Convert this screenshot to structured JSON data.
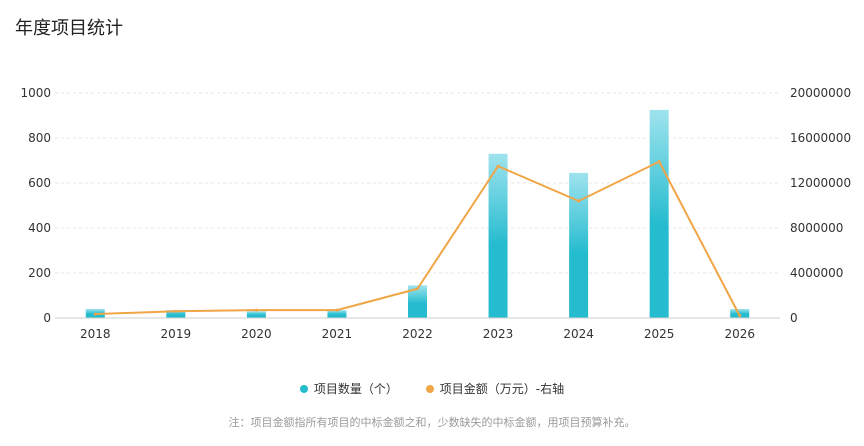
{
  "colors": {
    "bar_top": "#9fe3ee",
    "bar_bottom": "#26bccf",
    "line": "#f0a546",
    "grid": "#e6e6e6"
  },
  "chart_data": {
    "type": "bar",
    "title": "年度项目统计",
    "categories": [
      "2018",
      "2019",
      "2020",
      "2021",
      "2022",
      "2023",
      "2024",
      "2025",
      "2026"
    ],
    "series": [
      {
        "name": "项目数量（个）",
        "type": "bar",
        "axis": "left",
        "values": [
          40,
          35,
          30,
          35,
          145,
          730,
          645,
          925,
          40
        ]
      },
      {
        "name": "项目金额（万元）-右轴",
        "type": "line",
        "axis": "right",
        "values": [
          350000,
          600000,
          700000,
          700000,
          2600000,
          13500000,
          10400000,
          13900000,
          200000
        ]
      }
    ],
    "y_left": {
      "min": 0,
      "max": 1000,
      "ticks": [
        "0",
        "200",
        "400",
        "600",
        "800",
        "1000"
      ]
    },
    "y_right": {
      "min": 0,
      "max": 20000000,
      "ticks": [
        "0",
        "4000000",
        "8000000",
        "12000000",
        "16000000",
        "20000000"
      ]
    },
    "grid": true,
    "legend_position": "bottom"
  },
  "note": "注：项目金额指所有项目的中标金额之和，少数缺失的中标金额，用项目预算补充。"
}
